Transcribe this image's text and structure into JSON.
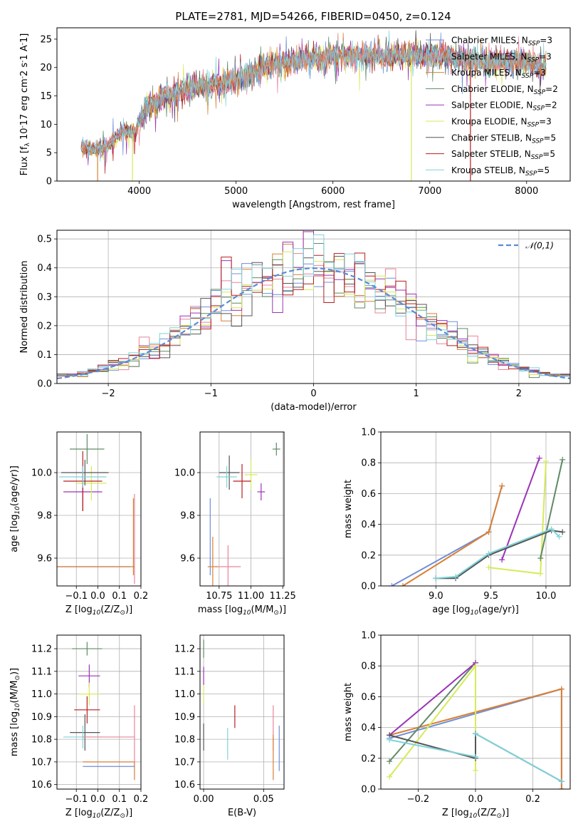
{
  "figure": {
    "title": "PLATE=2781, MJD=54266, FIBERID=0450, z=0.124",
    "colors": {
      "grid": "#b0b0b0",
      "gauss": "#5b8bd6"
    }
  },
  "chart_data": [
    {
      "type": "line",
      "panel": "spectrum",
      "xlabel": "wavelength [Angstrom, rest frame]",
      "ylabel": "Flux [f_λ 10^-17 erg cm^-2 s^-1 A^-1]",
      "xlim": [
        3150,
        8450
      ],
      "ylim": [
        0,
        27
      ],
      "xticks": [
        4000,
        5000,
        6000,
        7000,
        8000
      ],
      "yticks": [
        0,
        5,
        10,
        15,
        20,
        25
      ],
      "continuum": {
        "x": [
          3400,
          3500,
          3600,
          3700,
          3800,
          3850,
          3950,
          4050,
          4150,
          4300,
          4500,
          4700,
          4900,
          5100,
          5300,
          5500,
          5700,
          5900,
          6100,
          6300,
          6500,
          6700,
          6900,
          7100,
          7300,
          7500,
          7700,
          7900,
          8100,
          8200
        ],
        "y": [
          6.2,
          5.5,
          5.8,
          6.5,
          8.5,
          8.8,
          8.2,
          12.5,
          14.0,
          15.0,
          16.5,
          17.0,
          17.5,
          18.5,
          20.0,
          21.0,
          21.5,
          21.8,
          22.0,
          22.0,
          22.0,
          22.2,
          22.0,
          22.0,
          21.5,
          21.0,
          21.0,
          21.0,
          20.5,
          20.0
        ]
      },
      "legend_position": "top-right",
      "legend": [
        {
          "name": "Chabrier MILES, N$_{SSP}$=3",
          "color": "#6f8fd8"
        },
        {
          "name": "Salpeter MILES, N$_{SSP}$=3",
          "color": "#e8849a"
        },
        {
          "name": "Kroupa MILES, N$_{SSP}$=3",
          "color": "#d97f36"
        },
        {
          "name": "Chabrier ELODIE, N$_{SSP}$=2",
          "color": "#5f8a66"
        },
        {
          "name": "Salpeter ELODIE, N$_{SSP}$=2",
          "color": "#9a33b8"
        },
        {
          "name": "Kroupa ELODIE, N$_{SSP}$=3",
          "color": "#d6ea58"
        },
        {
          "name": "Chabrier STELIB, N$_{SSP}$=5",
          "color": "#555555"
        },
        {
          "name": "Salpeter STELIB, N$_{SSP}$=5",
          "color": "#b81e1e"
        },
        {
          "name": "Kroupa STELIB, N$_{SSP}$=5",
          "color": "#7fd3da"
        }
      ]
    },
    {
      "type": "histogram",
      "panel": "residuals",
      "xlabel": "(data-model)/error",
      "ylabel": "Normed distribution",
      "xlim": [
        -2.5,
        2.5
      ],
      "ylim": [
        0,
        0.53
      ],
      "xticks": [
        -2,
        -1,
        0,
        1,
        2
      ],
      "xtick_labels": [
        "−2",
        "−1",
        "0",
        "1",
        "2"
      ],
      "yticks": [
        0.0,
        0.1,
        0.2,
        0.3,
        0.4,
        0.5
      ],
      "ytick_labels": [
        "0.0",
        "0.1",
        "0.2",
        "0.3",
        "0.4",
        "0.5"
      ],
      "gaussian_label": "$\\mathcal{N}(0,1)$",
      "legend_position": "top-right",
      "bin_width": 0.1
    },
    {
      "type": "scatter",
      "panel": "age-vs-Z",
      "xlabel": "Z [log$_{10}$(Z/Z$_\\odot$)]",
      "ylabel": "age  [log$_{10}$(age/yr)]",
      "xlim": [
        -0.19,
        0.2
      ],
      "ylim": [
        9.47,
        10.19
      ],
      "xticks": [
        -0.1,
        0.0,
        0.1,
        0.2
      ],
      "xtick_labels": [
        "−0.1",
        "0.0",
        "0.1",
        "0.2"
      ],
      "yticks": [
        9.6,
        9.8,
        10.0
      ],
      "ytick_labels": [
        "9.6",
        "9.8",
        "10.0"
      ],
      "points": [
        {
          "x": -0.05,
          "y": 9.56,
          "xerr": 0.2,
          "yerr": 0,
          "color": "#6f8fd8"
        },
        {
          "x": 0.17,
          "y": 9.69,
          "xerr": 0,
          "yerr": 0.21,
          "color": "#e8849a"
        },
        {
          "x": -0.03,
          "y": 9.56,
          "xerr": 0.2,
          "yerr": 0,
          "color": "#d97f36"
        },
        {
          "x": 0.165,
          "y": 9.7,
          "xerr": 0,
          "yerr": 0.18,
          "color": "#d97f36"
        },
        {
          "x": -0.05,
          "y": 10.11,
          "xerr": 0.08,
          "yerr": 0.07,
          "color": "#5f8a66"
        },
        {
          "x": -0.07,
          "y": 9.91,
          "xerr": 0.09,
          "yerr": 0.09,
          "color": "#9a33b8"
        },
        {
          "x": -0.03,
          "y": 9.95,
          "xerr": 0.07,
          "yerr": 0.08,
          "color": "#d6ea58"
        },
        {
          "x": -0.06,
          "y": 10.0,
          "xerr": 0.11,
          "yerr": 0.06,
          "color": "#555555"
        },
        {
          "x": -0.07,
          "y": 9.96,
          "xerr": 0.09,
          "yerr": 0.14,
          "color": "#b81e1e"
        },
        {
          "x": -0.07,
          "y": 9.98,
          "xerr": 0.11,
          "yerr": 0.05,
          "color": "#7fd3da"
        }
      ]
    },
    {
      "type": "scatter",
      "panel": "age-vs-mass",
      "xlabel": "mass [log$_{10}$(M/M$_\\odot$)]",
      "ylabel": "",
      "xlim": [
        10.6,
        11.26
      ],
      "ylim": [
        9.47,
        10.19
      ],
      "xticks": [
        10.75,
        11.0,
        11.25
      ],
      "xtick_labels": [
        "10.75",
        "11.00",
        "11.25"
      ],
      "yticks": [
        9.6,
        9.8,
        10.0
      ],
      "ytick_labels": [
        "9.6",
        "9.8",
        "10.0"
      ],
      "points": [
        {
          "x": 10.68,
          "y": 9.7,
          "xerr": 0,
          "yerr": 0.18,
          "color": "#6f8fd8"
        },
        {
          "x": 10.82,
          "y": 9.56,
          "xerr": 0.1,
          "yerr": 0.1,
          "color": "#e8849a"
        },
        {
          "x": 10.7,
          "y": 9.56,
          "xerr": 0.04,
          "yerr": 0.14,
          "color": "#d97f36"
        },
        {
          "x": 11.2,
          "y": 10.11,
          "xerr": 0.03,
          "yerr": 0.03,
          "color": "#5f8a66"
        },
        {
          "x": 11.08,
          "y": 9.91,
          "xerr": 0.03,
          "yerr": 0.04,
          "color": "#9a33b8"
        },
        {
          "x": 11.0,
          "y": 9.99,
          "xerr": 0.05,
          "yerr": 0.07,
          "color": "#d6ea58"
        },
        {
          "x": 10.83,
          "y": 10.0,
          "xerr": 0.08,
          "yerr": 0.08,
          "color": "#555555"
        },
        {
          "x": 10.93,
          "y": 9.96,
          "xerr": 0.07,
          "yerr": 0.08,
          "color": "#b81e1e"
        },
        {
          "x": 10.81,
          "y": 9.98,
          "xerr": 0.08,
          "yerr": 0.05,
          "color": "#7fd3da"
        }
      ]
    },
    {
      "type": "line",
      "panel": "weight-vs-age",
      "xlabel": "age  [log$_{10}$(age/yr)]",
      "ylabel": "mass weight",
      "xlim": [
        8.5,
        10.22
      ],
      "ylim": [
        0,
        1
      ],
      "xticks": [
        9.0,
        9.5,
        10.0
      ],
      "xtick_labels": [
        "9.0",
        "9.5",
        "10.0"
      ],
      "yticks": [
        0.0,
        0.2,
        0.4,
        0.6,
        0.8,
        1.0
      ],
      "ytick_labels": [
        "0.0",
        "0.2",
        "0.4",
        "0.6",
        "0.8",
        "1.0"
      ],
      "series": [
        {
          "x": [
            8.6,
            9.48,
            9.6
          ],
          "y": [
            0.0,
            0.35,
            0.65
          ],
          "color": "#6f8fd8"
        },
        {
          "x": [
            8.7,
            9.48,
            9.6
          ],
          "y": [
            0.0,
            0.35,
            0.65
          ],
          "color": "#d97f36"
        },
        {
          "x": [
            9.6,
            9.94
          ],
          "y": [
            0.17,
            0.83
          ],
          "color": "#9a33b8"
        },
        {
          "x": [
            9.48,
            9.95,
            10.0
          ],
          "y": [
            0.12,
            0.08,
            0.81
          ],
          "color": "#d6ea58"
        },
        {
          "x": [
            9.95,
            10.15
          ],
          "y": [
            0.18,
            0.82
          ],
          "color": "#5f8a66"
        },
        {
          "x": [
            9.0,
            9.18,
            9.48,
            10.05,
            10.15
          ],
          "y": [
            0.05,
            0.05,
            0.2,
            0.36,
            0.35
          ],
          "color": "#555555"
        },
        {
          "x": [
            9.0,
            9.18,
            9.48,
            10.05,
            10.12
          ],
          "y": [
            0.05,
            0.06,
            0.21,
            0.37,
            0.32
          ],
          "color": "#7fd3da"
        }
      ]
    },
    {
      "type": "scatter",
      "panel": "mass-vs-Z",
      "xlabel": "Z [log$_{10}$(Z/Z$_\\odot$)]",
      "ylabel": "mass [log$_{10}$(M/M$_\\odot$)]",
      "xlim": [
        -0.19,
        0.2
      ],
      "ylim": [
        10.58,
        11.26
      ],
      "xticks": [
        -0.1,
        0.0,
        0.1,
        0.2
      ],
      "xtick_labels": [
        "−0.1",
        "0.0",
        "0.1",
        "0.2"
      ],
      "yticks": [
        10.6,
        10.7,
        10.8,
        10.9,
        11.0,
        11.1,
        11.2
      ],
      "ytick_labels": [
        "10.6",
        "10.7",
        "10.8",
        "10.9",
        "11.0",
        "11.1",
        "11.2"
      ],
      "points": [
        {
          "x": -0.05,
          "y": 11.2,
          "xerr": 0.07,
          "yerr": 0.03,
          "color": "#5f8a66"
        },
        {
          "x": -0.04,
          "y": 11.08,
          "xerr": 0.05,
          "yerr": 0.05,
          "color": "#9a33b8"
        },
        {
          "x": -0.04,
          "y": 11.0,
          "xerr": 0.05,
          "yerr": 0.05,
          "color": "#d6ea58"
        },
        {
          "x": -0.05,
          "y": 10.93,
          "xerr": 0.06,
          "yerr": 0.06,
          "color": "#b81e1e"
        },
        {
          "x": -0.06,
          "y": 10.83,
          "xerr": 0.07,
          "yerr": 0.08,
          "color": "#555555"
        },
        {
          "x": -0.07,
          "y": 10.81,
          "xerr": 0.09,
          "yerr": 0.05,
          "color": "#7fd3da"
        },
        {
          "x": 0.05,
          "y": 10.81,
          "xerr": 0.12,
          "yerr": 0,
          "color": "#e8849a"
        },
        {
          "x": 0.17,
          "y": 10.81,
          "xerr": 0,
          "yerr": 0.14,
          "color": "#e8849a"
        },
        {
          "x": 0.05,
          "y": 10.7,
          "xerr": 0.12,
          "yerr": 0,
          "color": "#d97f36"
        },
        {
          "x": 0.17,
          "y": 10.66,
          "xerr": 0,
          "yerr": 0.04,
          "color": "#d97f36"
        },
        {
          "x": 0.05,
          "y": 10.68,
          "xerr": 0.12,
          "yerr": 0,
          "color": "#6f8fd8"
        }
      ]
    },
    {
      "type": "scatter",
      "panel": "mass-vs-EBV",
      "xlabel": "E(B-V)",
      "ylabel": "",
      "xlim": [
        -0.003,
        0.067
      ],
      "ylim": [
        10.58,
        11.26
      ],
      "xticks": [
        0.0,
        0.05
      ],
      "xtick_labels": [
        "0.00",
        "0.05"
      ],
      "yticks": [
        10.6,
        10.7,
        10.8,
        10.9,
        11.0,
        11.1,
        11.2
      ],
      "ytick_labels": [
        "10.6",
        "10.7",
        "10.8",
        "10.9",
        "11.0",
        "11.1",
        "11.2"
      ],
      "points": [
        {
          "x": 0.0,
          "y": 11.2,
          "xerr": 0,
          "yerr": 0.04,
          "color": "#5f8a66"
        },
        {
          "x": 0.0,
          "y": 11.08,
          "xerr": 0,
          "yerr": 0.04,
          "color": "#9a33b8"
        },
        {
          "x": 0.0,
          "y": 11.0,
          "xerr": 0,
          "yerr": 0.04,
          "color": "#d6ea58"
        },
        {
          "x": 0.0,
          "y": 10.81,
          "xerr": 0,
          "yerr": 0.06,
          "color": "#555555"
        },
        {
          "x": 0.026,
          "y": 10.9,
          "xerr": 0,
          "yerr": 0.05,
          "color": "#b81e1e"
        },
        {
          "x": 0.02,
          "y": 10.78,
          "xerr": 0,
          "yerr": 0.07,
          "color": "#7fd3da"
        },
        {
          "x": 0.058,
          "y": 10.85,
          "xerr": 0,
          "yerr": 0.1,
          "color": "#e8849a"
        },
        {
          "x": 0.058,
          "y": 10.72,
          "xerr": 0,
          "yerr": 0.1,
          "color": "#d97f36"
        },
        {
          "x": 0.063,
          "y": 10.76,
          "xerr": 0,
          "yerr": 0.1,
          "color": "#6f8fd8"
        }
      ]
    },
    {
      "type": "line",
      "panel": "weight-vs-Z",
      "xlabel": "Z [log$_{10}$(Z/Z$_\\odot$)]",
      "ylabel": "mass weight",
      "xlim": [
        -0.33,
        0.33
      ],
      "ylim": [
        0,
        1
      ],
      "xticks": [
        -0.2,
        0.0,
        0.2
      ],
      "xtick_labels": [
        "−0.2",
        "0.0",
        "0.2"
      ],
      "yticks": [
        0.0,
        0.2,
        0.4,
        0.6,
        0.8,
        1.0
      ],
      "ytick_labels": [
        "0.0",
        "0.2",
        "0.4",
        "0.6",
        "0.8",
        "1.0"
      ],
      "series": [
        {
          "x": [
            -0.3,
            0.3,
            0.3
          ],
          "y": [
            0.33,
            0.65,
            0.0
          ],
          "color": "#6f8fd8"
        },
        {
          "x": [
            -0.3,
            0.3,
            0.3
          ],
          "y": [
            0.35,
            0.65,
            0.0
          ],
          "color": "#d97f36"
        },
        {
          "x": [
            -0.3,
            0.0
          ],
          "y": [
            0.18,
            0.82
          ],
          "color": "#5f8a66"
        },
        {
          "x": [
            -0.3,
            0.0
          ],
          "y": [
            0.35,
            0.82
          ],
          "color": "#9a33b8"
        },
        {
          "x": [
            -0.3,
            0.0,
            0.0
          ],
          "y": [
            0.08,
            0.8,
            0.12
          ],
          "color": "#d6ea58"
        },
        {
          "x": [
            -0.3,
            0.0,
            0.0
          ],
          "y": [
            0.35,
            0.2,
            0.36
          ],
          "color": "#555555"
        },
        {
          "x": [
            0.0,
            0.3
          ],
          "y": [
            0.36,
            0.05
          ],
          "color": "#555555"
        },
        {
          "x": [
            0.0,
            0.3
          ],
          "y": [
            0.36,
            0.05
          ],
          "color": "#7fd3da"
        },
        {
          "x": [
            -0.3,
            0.0
          ],
          "y": [
            0.32,
            0.21
          ],
          "color": "#7fd3da"
        }
      ]
    }
  ]
}
